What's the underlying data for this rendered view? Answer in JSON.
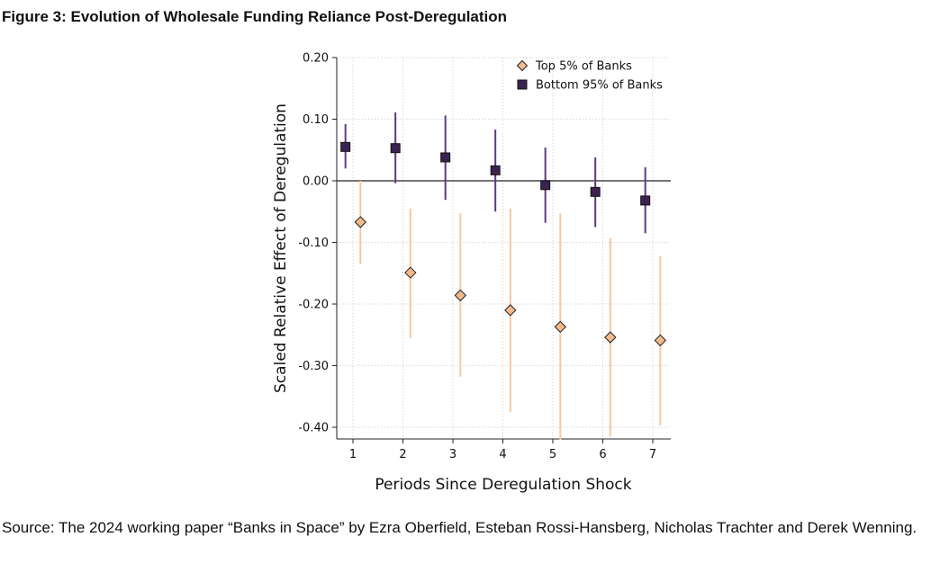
{
  "figure_title": "Figure 3: Evolution of Wholesale Funding Reliance Post-Deregulation",
  "source_text": "Source: The 2024 working paper “Banks in Space” by Ezra Oberfield, Esteban Rossi-Hansberg, Nicholas Trachter and Derek Wenning.",
  "chart_data": {
    "type": "scatter",
    "xlabel": "Periods Since Deregulation Shock",
    "ylabel": "Scaled Relative Effect of Deregulation",
    "xlim": [
      0.8,
      7.3
    ],
    "ylim": [
      -0.42,
      0.2
    ],
    "x_ticks": [
      1,
      2,
      3,
      4,
      5,
      6,
      7
    ],
    "x_tick_labels": [
      "1",
      "2",
      "3",
      "4",
      "5",
      "6",
      "7"
    ],
    "y_ticks": [
      0.2,
      0.1,
      0.0,
      -0.1,
      -0.2,
      -0.3,
      -0.4
    ],
    "y_tick_labels": [
      "0.20",
      "0.10",
      "0.00",
      "-0.10",
      "-0.20",
      "-0.30",
      "-0.40"
    ],
    "grid": true,
    "reference_line": 0,
    "legend_position": "top-right",
    "series": [
      {
        "name": "Top 5% of Banks",
        "marker": "diamond",
        "marker_color": "#F2B98A",
        "line_color": "#F7C7A0",
        "points": [
          {
            "x": 1.15,
            "y": -0.067,
            "ci_low": -0.135,
            "ci_high": 0.0
          },
          {
            "x": 2.15,
            "y": -0.149,
            "ci_low": -0.255,
            "ci_high": -0.045
          },
          {
            "x": 3.15,
            "y": -0.186,
            "ci_low": -0.318,
            "ci_high": -0.053
          },
          {
            "x": 4.15,
            "y": -0.21,
            "ci_low": -0.375,
            "ci_high": -0.045
          },
          {
            "x": 5.15,
            "y": -0.237,
            "ci_low": -0.42,
            "ci_high": -0.053
          },
          {
            "x": 6.15,
            "y": -0.254,
            "ci_low": -0.415,
            "ci_high": -0.093
          },
          {
            "x": 7.15,
            "y": -0.259,
            "ci_low": -0.397,
            "ci_high": -0.122
          }
        ]
      },
      {
        "name": "Bottom 95% of Banks",
        "marker": "square",
        "marker_color": "#3B2250",
        "line_color": "#5E3A7A",
        "points": [
          {
            "x": 0.85,
            "y": 0.055,
            "ci_low": 0.02,
            "ci_high": 0.092
          },
          {
            "x": 1.85,
            "y": 0.053,
            "ci_low": -0.004,
            "ci_high": 0.111
          },
          {
            "x": 2.85,
            "y": 0.038,
            "ci_low": -0.031,
            "ci_high": 0.106
          },
          {
            "x": 3.85,
            "y": 0.017,
            "ci_low": -0.05,
            "ci_high": 0.083
          },
          {
            "x": 4.85,
            "y": -0.007,
            "ci_low": -0.068,
            "ci_high": 0.054
          },
          {
            "x": 5.85,
            "y": -0.018,
            "ci_low": -0.075,
            "ci_high": 0.038
          },
          {
            "x": 6.85,
            "y": -0.032,
            "ci_low": -0.085,
            "ci_high": 0.022
          }
        ]
      }
    ]
  }
}
